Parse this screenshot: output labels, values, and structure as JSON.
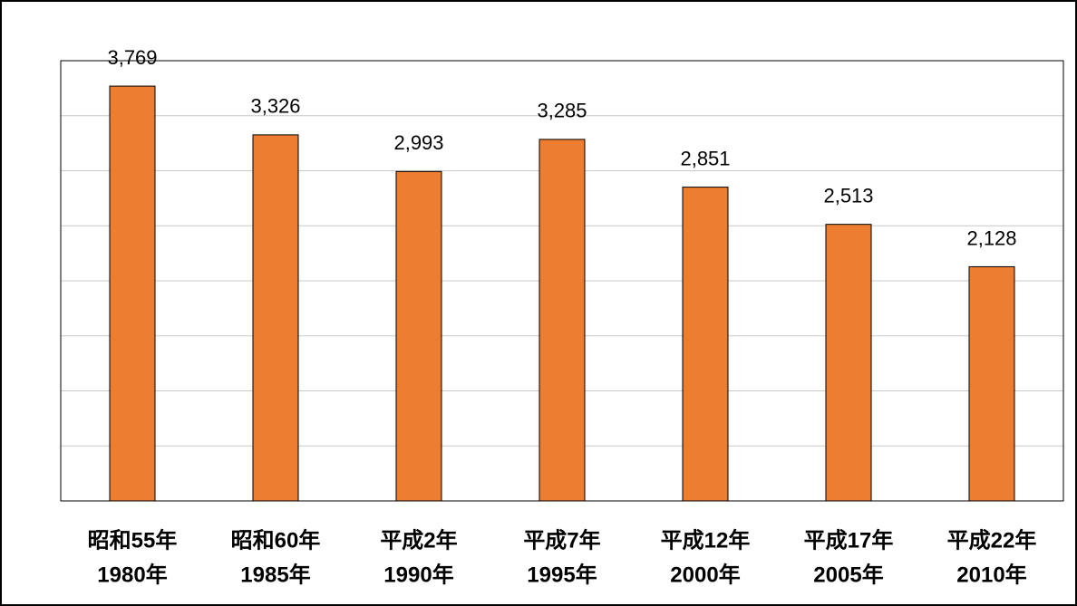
{
  "chart_data": {
    "type": "bar",
    "categories": [
      [
        "昭和55年",
        "1980年"
      ],
      [
        "昭和60年",
        "1985年"
      ],
      [
        "平成2年",
        "1990年"
      ],
      [
        "平成7年",
        "1995年"
      ],
      [
        "平成12年",
        "2000年"
      ],
      [
        "平成17年",
        "2005年"
      ],
      [
        "平成22年",
        "2010年"
      ]
    ],
    "values": [
      3769,
      3326,
      2993,
      3285,
      2851,
      2513,
      2128
    ],
    "value_labels": [
      "3,769",
      "3,326",
      "2,993",
      "3,285",
      "2,851",
      "2,513",
      "2,128"
    ],
    "color": "#ed7d31",
    "ylim": [
      0,
      4000
    ],
    "yticks": [
      0,
      500,
      1000,
      1500,
      2000,
      2500,
      3000,
      3500,
      4000
    ],
    "grid": true
  }
}
